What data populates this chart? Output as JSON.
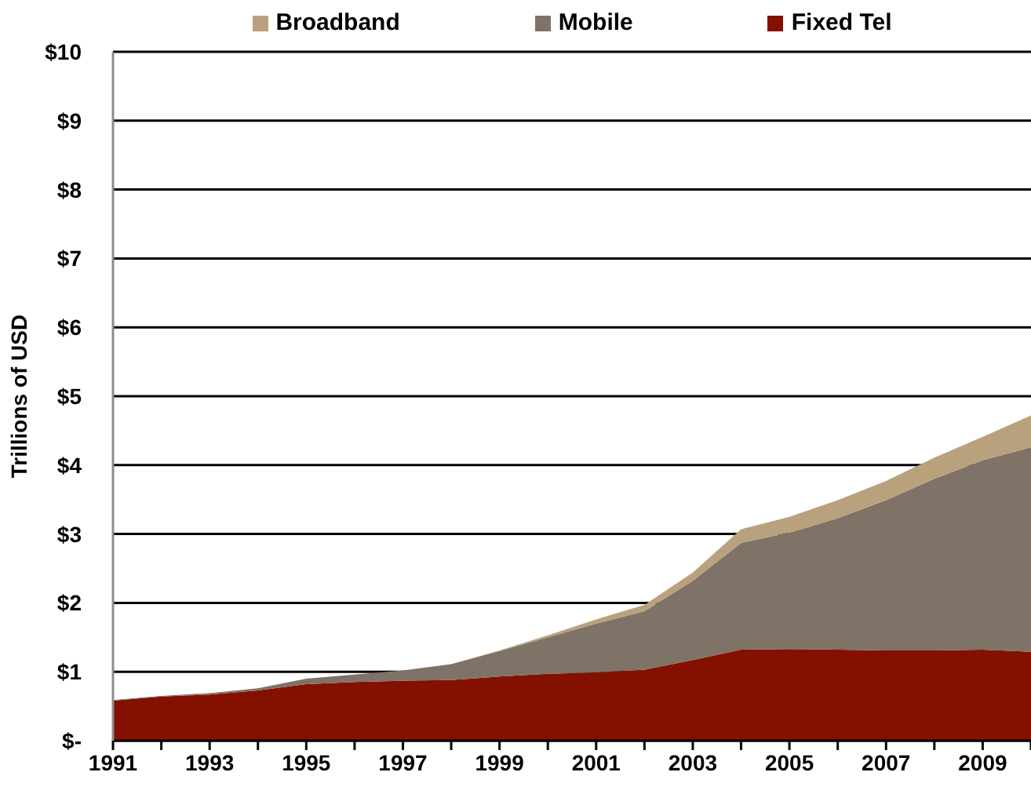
{
  "chart_data": {
    "type": "area",
    "stacked": true,
    "ylabel": "Trillions of USD",
    "x": [
      1991,
      1992,
      1993,
      1994,
      1995,
      1996,
      1997,
      1998,
      1999,
      2000,
      2001,
      2002,
      2003,
      2004,
      2005,
      2006,
      2007,
      2008,
      2009,
      2010
    ],
    "xlim": [
      1991,
      2010
    ],
    "xticks": [
      1991,
      {
        "value": 1992,
        "label": null
      },
      1993,
      {
        "value": 1994,
        "label": null
      },
      1995,
      {
        "value": 1996,
        "label": null
      },
      1997,
      {
        "value": 1998,
        "label": null
      },
      1999,
      {
        "value": 2000,
        "label": null
      },
      2001,
      {
        "value": 2002,
        "label": null
      },
      2003,
      {
        "value": 2004,
        "label": null
      },
      2005,
      {
        "value": 2006,
        "label": null
      },
      2007,
      {
        "value": 2008,
        "label": null
      },
      2009,
      {
        "value": 2010,
        "label": null
      }
    ],
    "ylim": [
      0,
      10
    ],
    "yticks": [
      {
        "value": 0,
        "label": "$-"
      },
      {
        "value": 1,
        "label": "$1"
      },
      {
        "value": 2,
        "label": "$2"
      },
      {
        "value": 3,
        "label": "$3"
      },
      {
        "value": 4,
        "label": "$4"
      },
      {
        "value": 5,
        "label": "$5"
      },
      {
        "value": 6,
        "label": "$6"
      },
      {
        "value": 7,
        "label": "$7"
      },
      {
        "value": 8,
        "label": "$8"
      },
      {
        "value": 9,
        "label": "$9"
      },
      {
        "value": 10,
        "label": "$10"
      }
    ],
    "grid": "y",
    "legend": "top",
    "series": [
      {
        "name": "Fixed Tel",
        "color": "#841100",
        "values": [
          0.58,
          0.64,
          0.67,
          0.73,
          0.82,
          0.85,
          0.87,
          0.88,
          0.93,
          0.97,
          0.99,
          1.03,
          1.17,
          1.32,
          1.33,
          1.32,
          1.31,
          1.31,
          1.32,
          1.29
        ]
      },
      {
        "name": "Mobile",
        "color": "#7f7266",
        "values": [
          0.01,
          0.01,
          0.02,
          0.03,
          0.08,
          0.11,
          0.15,
          0.23,
          0.37,
          0.53,
          0.71,
          0.85,
          1.15,
          1.55,
          1.69,
          1.91,
          2.18,
          2.49,
          2.75,
          2.97
        ]
      },
      {
        "name": "Broadband",
        "color": "#b9a17e",
        "values": [
          0,
          0,
          0,
          0,
          0,
          0,
          0,
          0,
          0.01,
          0.03,
          0.06,
          0.09,
          0.12,
          0.2,
          0.23,
          0.26,
          0.28,
          0.31,
          0.34,
          0.46
        ]
      }
    ]
  }
}
